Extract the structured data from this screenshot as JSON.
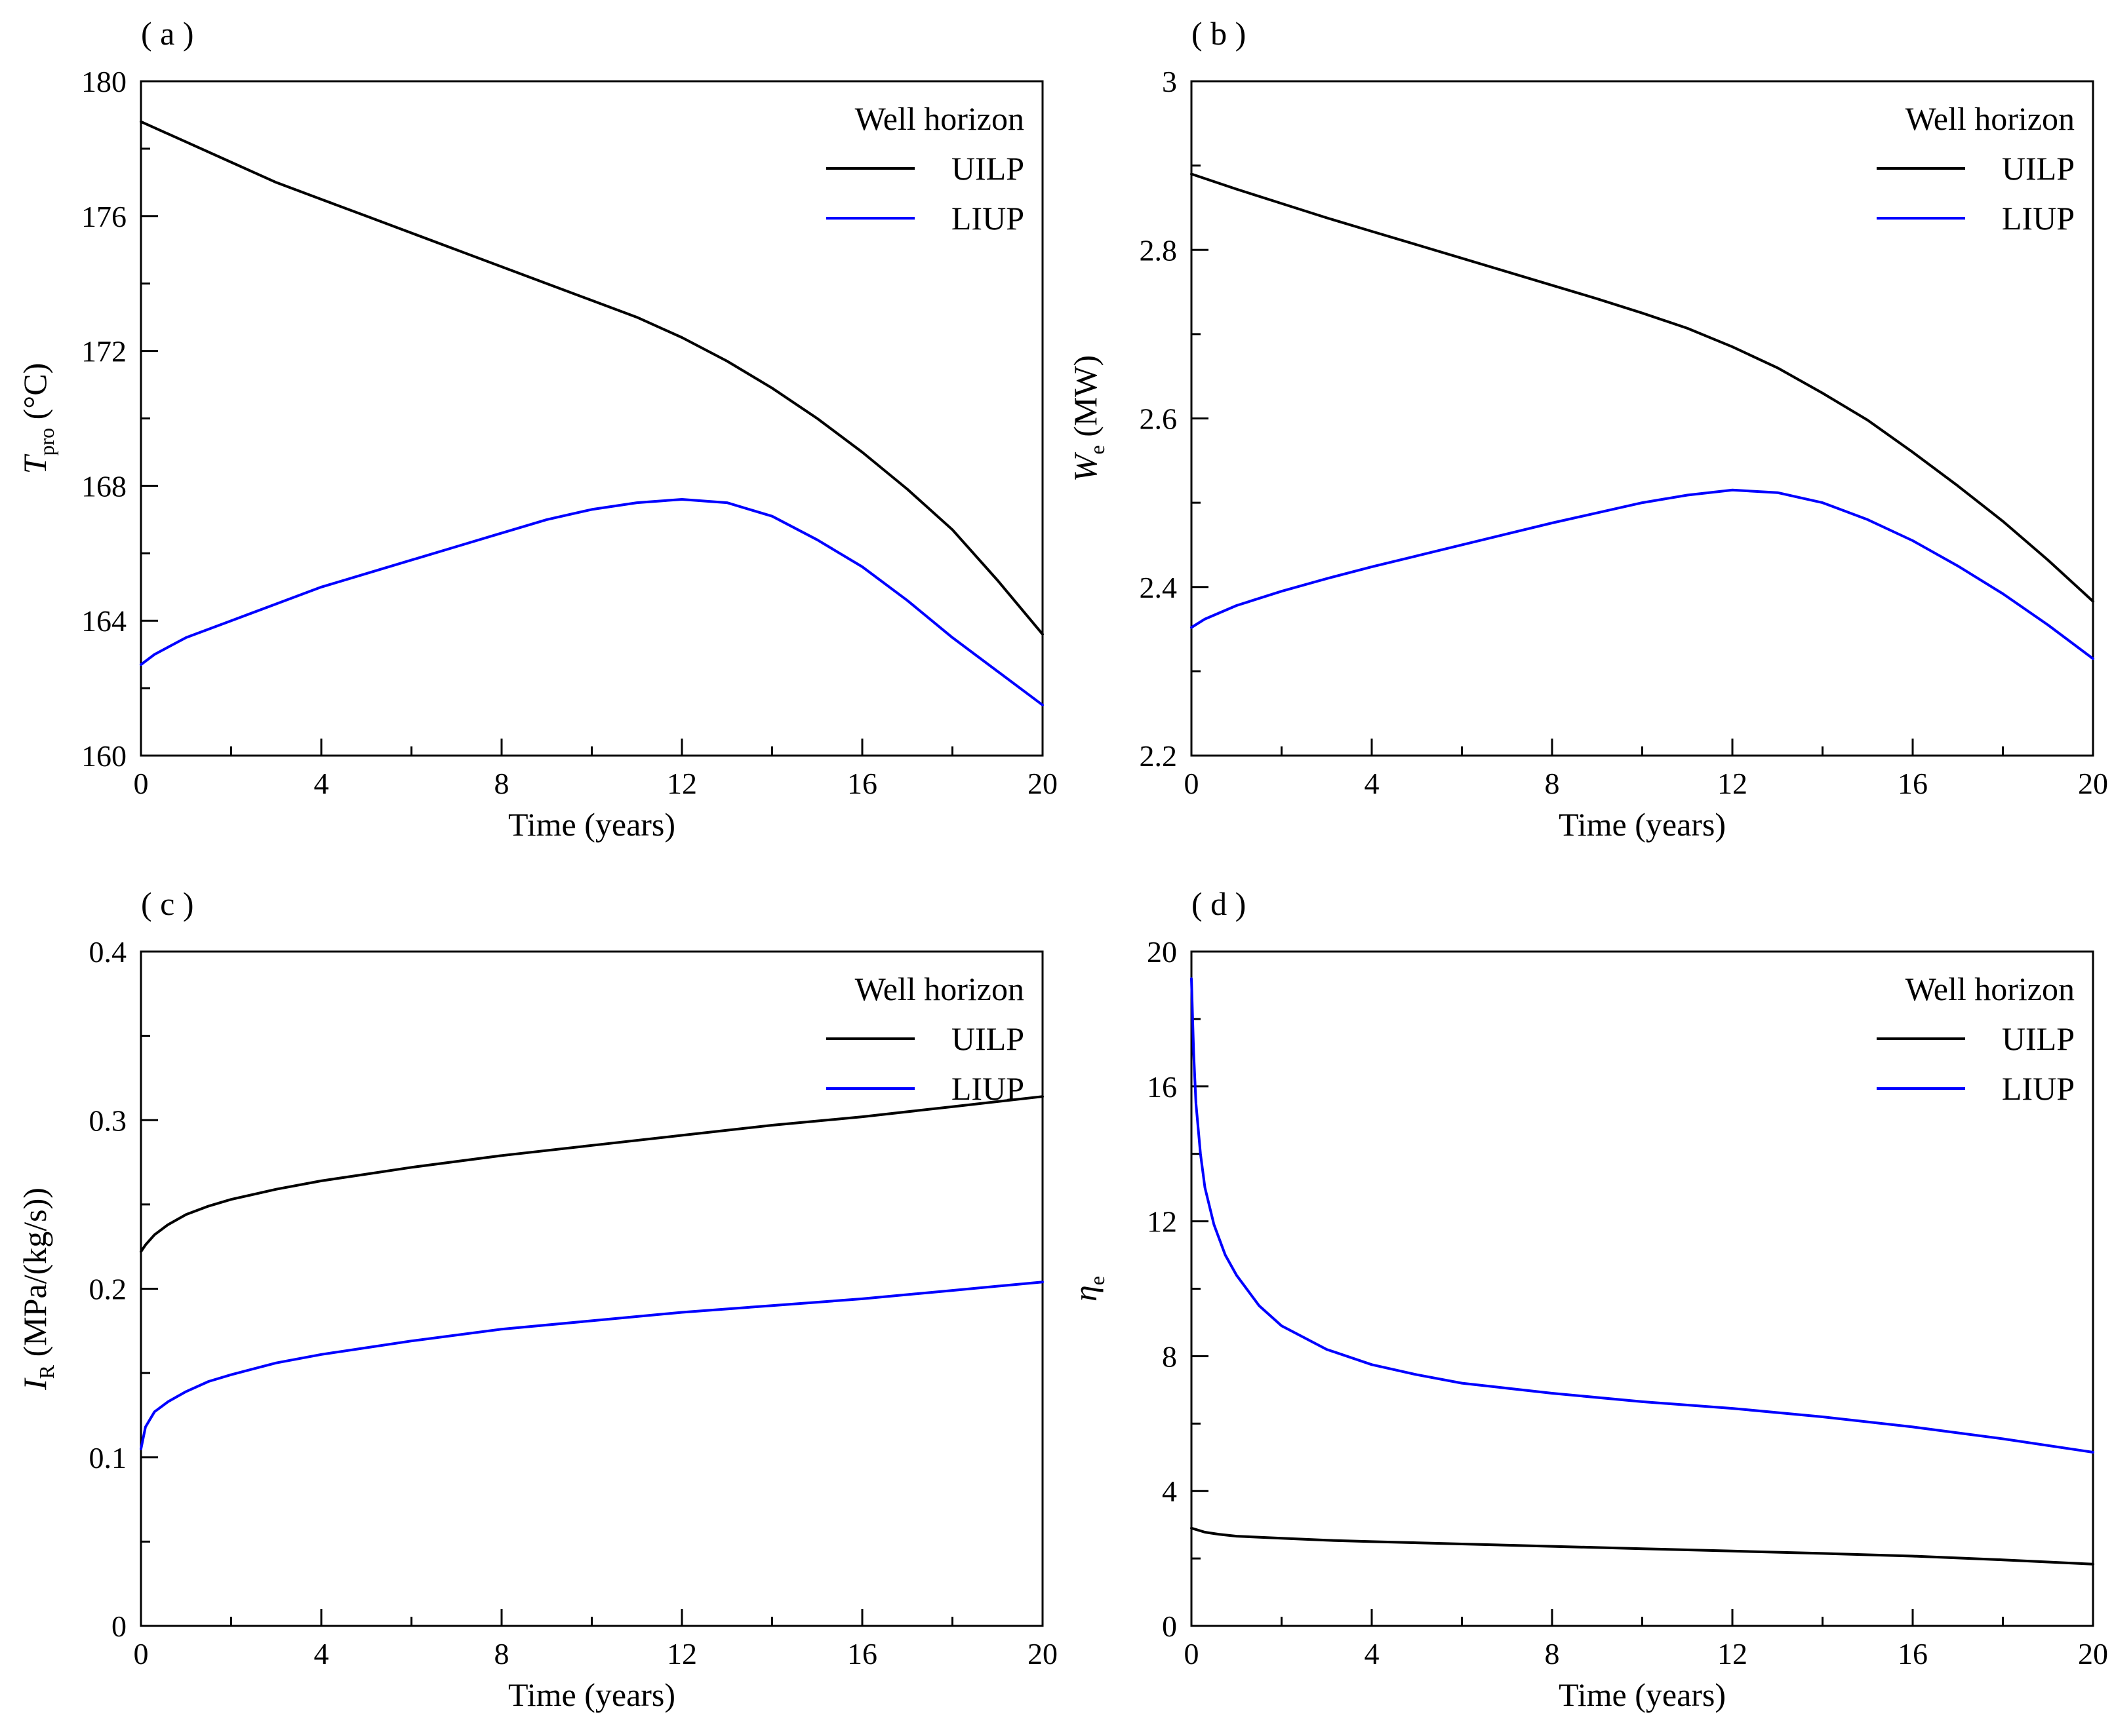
{
  "colors": {
    "uilp": "#000000",
    "liup": "#0000ff",
    "axis": "#000000"
  },
  "chart_data": [
    {
      "id": "a",
      "type": "line",
      "panel_label": "( a )",
      "xlabel": "Time (years)",
      "ylabel": {
        "main": "T",
        "sub": "pro",
        "units": " (°C)",
        "italic_main": true
      },
      "xlim": [
        0,
        20
      ],
      "ylim": [
        160,
        180
      ],
      "xticks": [
        0,
        4,
        8,
        12,
        16,
        20
      ],
      "yticks": [
        160,
        164,
        168,
        172,
        176,
        180
      ],
      "yticklabels": [
        "160",
        "164",
        "168",
        "172",
        "176",
        "180"
      ],
      "legend": {
        "title": "Well horizon",
        "position": "top-right"
      },
      "series": [
        {
          "name": "UILP",
          "color": "#000000",
          "x": [
            0,
            1,
            2,
            3,
            4,
            5,
            6,
            7,
            8,
            9,
            10,
            11,
            12,
            13,
            14,
            15,
            16,
            17,
            18,
            19,
            20
          ],
          "y": [
            178.8,
            178.2,
            177.6,
            177.0,
            176.5,
            176.0,
            175.5,
            175.0,
            174.5,
            174.0,
            173.5,
            173.0,
            172.4,
            171.7,
            170.9,
            170.0,
            169.0,
            167.9,
            166.7,
            165.2,
            163.6
          ]
        },
        {
          "name": "LIUP",
          "color": "#0000ff",
          "x": [
            0,
            0.3,
            1,
            2,
            3,
            4,
            5,
            6,
            7,
            8,
            9,
            10,
            11,
            12,
            13,
            14,
            15,
            16,
            17,
            18,
            19,
            20
          ],
          "y": [
            162.7,
            163.0,
            163.5,
            164.0,
            164.5,
            165.0,
            165.4,
            165.8,
            166.2,
            166.6,
            167.0,
            167.3,
            167.5,
            167.6,
            167.5,
            167.1,
            166.4,
            165.6,
            164.6,
            163.5,
            162.5,
            161.5
          ]
        }
      ]
    },
    {
      "id": "b",
      "type": "line",
      "panel_label": "( b )",
      "xlabel": "Time (years)",
      "ylabel": {
        "main": "W",
        "sub": "e",
        "units": " (MW)",
        "italic_main": true
      },
      "xlim": [
        0,
        20
      ],
      "ylim": [
        2.2,
        3.0
      ],
      "xticks": [
        0,
        4,
        8,
        12,
        16,
        20
      ],
      "yticks": [
        2.2,
        2.4,
        2.6,
        2.8,
        3.0
      ],
      "yticklabels": [
        "2.2",
        "2.4",
        "2.6",
        "2.8",
        "3"
      ],
      "legend": {
        "title": "Well horizon",
        "position": "top-right"
      },
      "series": [
        {
          "name": "UILP",
          "color": "#000000",
          "x": [
            0,
            1,
            2,
            3,
            4,
            5,
            6,
            7,
            8,
            9,
            10,
            11,
            12,
            13,
            14,
            15,
            16,
            17,
            18,
            19,
            20
          ],
          "y": [
            2.89,
            2.872,
            2.855,
            2.838,
            2.822,
            2.806,
            2.79,
            2.774,
            2.758,
            2.742,
            2.725,
            2.707,
            2.685,
            2.66,
            2.63,
            2.598,
            2.56,
            2.52,
            2.478,
            2.432,
            2.383
          ]
        },
        {
          "name": "LIUP",
          "color": "#0000ff",
          "x": [
            0,
            0.3,
            1,
            2,
            3,
            4,
            5,
            6,
            7,
            8,
            9,
            10,
            11,
            12,
            13,
            14,
            15,
            16,
            17,
            18,
            19,
            20
          ],
          "y": [
            2.352,
            2.362,
            2.378,
            2.395,
            2.41,
            2.424,
            2.437,
            2.45,
            2.463,
            2.476,
            2.488,
            2.5,
            2.509,
            2.515,
            2.512,
            2.5,
            2.48,
            2.455,
            2.425,
            2.392,
            2.355,
            2.315
          ]
        }
      ]
    },
    {
      "id": "c",
      "type": "line",
      "panel_label": "( c )",
      "xlabel": "Time (years)",
      "ylabel": {
        "main": "I",
        "sub": "R",
        "units": " (MPa/(kg/s))",
        "italic_main": true
      },
      "xlim": [
        0,
        20
      ],
      "ylim": [
        0,
        0.4
      ],
      "xticks": [
        0,
        4,
        8,
        12,
        16,
        20
      ],
      "yticks": [
        0,
        0.1,
        0.2,
        0.3,
        0.4
      ],
      "yticklabels": [
        "0",
        "0.1",
        "0.2",
        "0.3",
        "0.4"
      ],
      "legend": {
        "title": "Well horizon",
        "position": "top-right"
      },
      "series": [
        {
          "name": "UILP",
          "color": "#000000",
          "x": [
            0,
            0.1,
            0.3,
            0.6,
            1,
            1.5,
            2,
            3,
            4,
            5,
            6,
            8,
            10,
            12,
            14,
            16,
            18,
            20
          ],
          "y": [
            0.222,
            0.226,
            0.232,
            0.238,
            0.244,
            0.249,
            0.253,
            0.259,
            0.264,
            0.268,
            0.272,
            0.279,
            0.285,
            0.291,
            0.297,
            0.302,
            0.308,
            0.314
          ]
        },
        {
          "name": "LIUP",
          "color": "#0000ff",
          "x": [
            0,
            0.1,
            0.3,
            0.6,
            1,
            1.5,
            2,
            3,
            4,
            5,
            6,
            8,
            10,
            12,
            14,
            16,
            18,
            20
          ],
          "y": [
            0.105,
            0.118,
            0.127,
            0.133,
            0.139,
            0.145,
            0.149,
            0.156,
            0.161,
            0.165,
            0.169,
            0.176,
            0.181,
            0.186,
            0.19,
            0.194,
            0.199,
            0.204
          ]
        }
      ]
    },
    {
      "id": "d",
      "type": "line",
      "panel_label": "( d )",
      "xlabel": "Time (years)",
      "ylabel": {
        "main": "η",
        "sub": "e",
        "units": "",
        "italic_main": true
      },
      "xlim": [
        0,
        20
      ],
      "ylim": [
        0,
        20
      ],
      "xticks": [
        0,
        4,
        8,
        12,
        16,
        20
      ],
      "yticks": [
        0,
        4,
        8,
        12,
        16,
        20
      ],
      "yticklabels": [
        "0",
        "4",
        "8",
        "12",
        "16",
        "20"
      ],
      "legend": {
        "title": "Well horizon",
        "position": "top-right"
      },
      "series": [
        {
          "name": "UILP",
          "color": "#000000",
          "x": [
            0,
            0.3,
            0.6,
            1,
            2,
            3,
            4,
            6,
            8,
            10,
            12,
            14,
            16,
            18,
            20
          ],
          "y": [
            2.9,
            2.78,
            2.72,
            2.66,
            2.6,
            2.54,
            2.5,
            2.43,
            2.36,
            2.29,
            2.22,
            2.15,
            2.07,
            1.96,
            1.83
          ]
        },
        {
          "name": "LIUP",
          "color": "#0000ff",
          "x": [
            0,
            0.05,
            0.1,
            0.2,
            0.3,
            0.5,
            0.75,
            1,
            1.5,
            2,
            3,
            4,
            5,
            6,
            8,
            10,
            12,
            14,
            16,
            18,
            20
          ],
          "y": [
            19.2,
            17.0,
            15.5,
            14.0,
            13.0,
            11.9,
            11.0,
            10.4,
            9.5,
            8.9,
            8.2,
            7.75,
            7.45,
            7.2,
            6.9,
            6.65,
            6.45,
            6.2,
            5.9,
            5.55,
            5.15
          ]
        }
      ]
    }
  ]
}
